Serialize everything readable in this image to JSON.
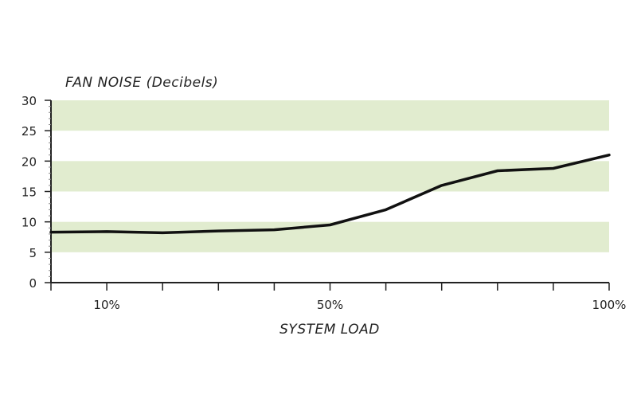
{
  "chart_data": {
    "type": "line",
    "ylabel": "FAN NOISE (Decibels)",
    "xlabel": "SYSTEM LOAD",
    "xlim": [
      0,
      100
    ],
    "ylim": [
      0,
      30
    ],
    "x_tick_labels": [
      {
        "x": 10,
        "label": "10%"
      },
      {
        "x": 50,
        "label": "50%"
      },
      {
        "x": 100,
        "label": "100%"
      }
    ],
    "x_minor_ticks": [
      0,
      10,
      20,
      30,
      40,
      50,
      60,
      70,
      80,
      90,
      100
    ],
    "y_ticks": [
      0,
      5,
      10,
      15,
      20,
      25,
      30
    ],
    "bands": [
      {
        "from": 5,
        "to": 10
      },
      {
        "from": 15,
        "to": 20
      },
      {
        "from": 25,
        "to": 30
      }
    ],
    "band_color": "#e1eccf",
    "line_color": "#111111",
    "series": [
      {
        "x": [
          0,
          10,
          20,
          30,
          40,
          50,
          60,
          70,
          80,
          90,
          100
        ],
        "y": [
          8.3,
          8.4,
          8.2,
          8.5,
          8.7,
          9.5,
          12.0,
          16.0,
          18.4,
          18.8,
          21.0
        ]
      }
    ]
  }
}
